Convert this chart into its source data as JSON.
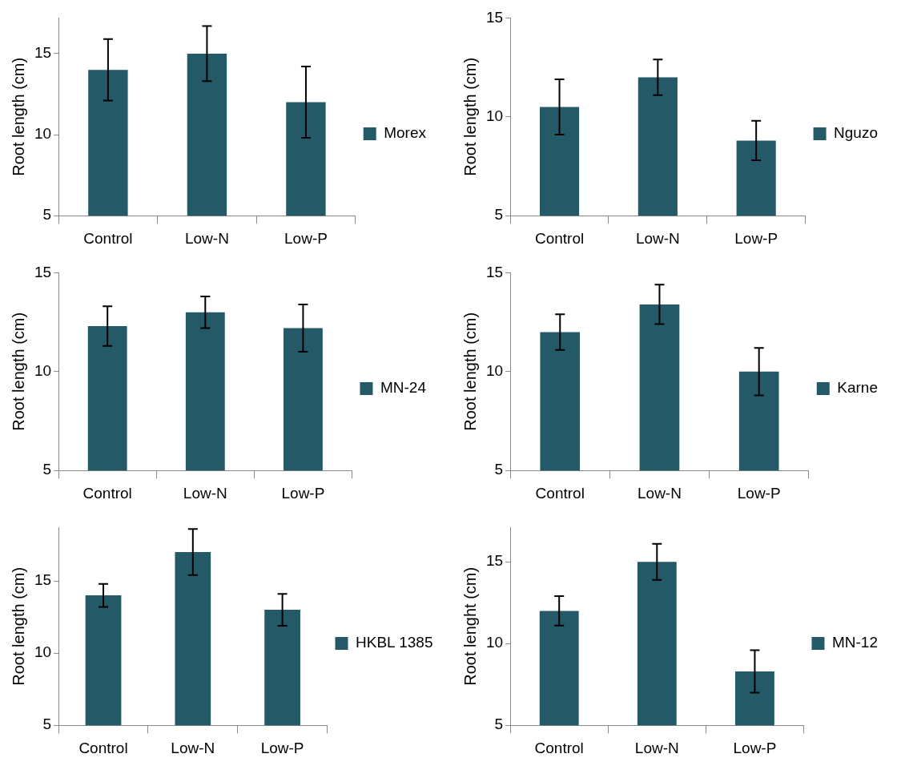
{
  "chart_data": [
    {
      "type": "bar",
      "ylabel": "Root length (cm)",
      "categories": [
        "Control",
        "Low-N",
        "Low-P"
      ],
      "series": [
        {
          "name": "Morex",
          "color": "#245a68",
          "values": [
            14,
            15,
            12
          ],
          "errors": [
            1.9,
            1.7,
            2.2
          ]
        }
      ],
      "ylim": [
        5,
        17.2
      ],
      "yticks": [
        5,
        10,
        15
      ],
      "grid": false,
      "legend": "right"
    },
    {
      "type": "bar",
      "ylabel": "Root length (cm)",
      "categories": [
        "Control",
        "Low-N",
        "Low-P"
      ],
      "series": [
        {
          "name": "Nguzo",
          "color": "#245a68",
          "values": [
            10.5,
            12,
            8.8
          ],
          "errors": [
            1.4,
            0.9,
            1.0
          ]
        }
      ],
      "ylim": [
        5,
        15
      ],
      "yticks": [
        5,
        10,
        15
      ],
      "grid": false,
      "legend": "right"
    },
    {
      "type": "bar",
      "ylabel": "Root length (cm)",
      "categories": [
        "Control",
        "Low-N",
        "Low-P"
      ],
      "series": [
        {
          "name": "MN-24",
          "color": "#245a68",
          "values": [
            12.3,
            13,
            12.2
          ],
          "errors": [
            1.0,
            0.8,
            1.2
          ]
        }
      ],
      "ylim": [
        5,
        15
      ],
      "yticks": [
        5,
        10,
        15
      ],
      "grid": false,
      "legend": "right"
    },
    {
      "type": "bar",
      "ylabel": "Root length (cm)",
      "categories": [
        "Control",
        "Low-N",
        "Low-P"
      ],
      "series": [
        {
          "name": "Karne",
          "color": "#245a68",
          "values": [
            12,
            13.4,
            10
          ],
          "errors": [
            0.9,
            1.0,
            1.2
          ]
        }
      ],
      "ylim": [
        5,
        15
      ],
      "yticks": [
        5,
        10,
        15
      ],
      "grid": false,
      "legend": "right"
    },
    {
      "type": "bar",
      "ylabel": "Root length (cm)",
      "categories": [
        "Control",
        "Low-N",
        "Low-P"
      ],
      "series": [
        {
          "name": "HKBL 1385",
          "color": "#245a68",
          "values": [
            14,
            17,
            13
          ],
          "errors": [
            0.8,
            1.6,
            1.1
          ]
        }
      ],
      "ylim": [
        5,
        18.7
      ],
      "yticks": [
        5,
        10,
        15
      ],
      "grid": false,
      "legend": "right"
    },
    {
      "type": "bar",
      "ylabel": "Root lenght (cm)",
      "categories": [
        "Control",
        "Low-N",
        "Low-P"
      ],
      "series": [
        {
          "name": "MN-12",
          "color": "#245a68",
          "values": [
            12,
            15,
            8.3
          ],
          "errors": [
            0.9,
            1.1,
            1.3
          ]
        }
      ],
      "ylim": [
        5,
        17.1
      ],
      "yticks": [
        5,
        10,
        15
      ],
      "grid": false,
      "legend": "right"
    }
  ]
}
